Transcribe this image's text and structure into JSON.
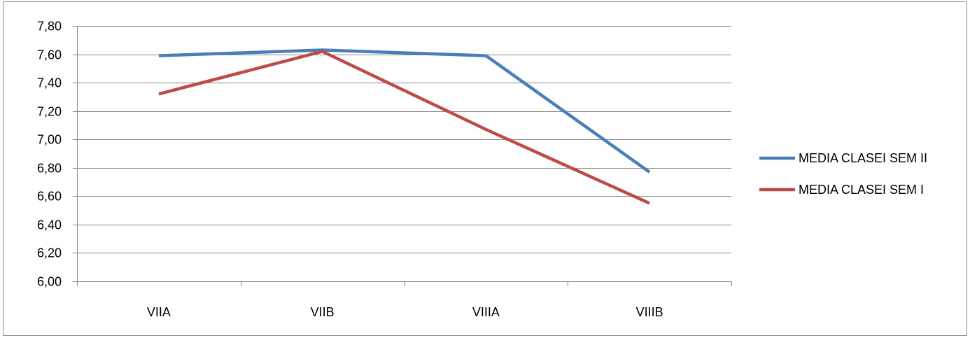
{
  "chart_data": {
    "type": "line",
    "categories": [
      "VIIA",
      "VIIB",
      "VIIIA",
      "VIIIB"
    ],
    "series": [
      {
        "name": "MEDIA CLASEI SEM II",
        "values": [
          7.59,
          7.63,
          7.59,
          6.77
        ],
        "color": "#4a7ebb"
      },
      {
        "name": "MEDIA CLASEI SEM I",
        "values": [
          7.32,
          7.62,
          7.07,
          6.55
        ],
        "color": "#be4b48"
      }
    ],
    "ylim": [
      6.0,
      7.8
    ],
    "y_ticks": [
      "6,00",
      "6,20",
      "6,40",
      "6,60",
      "6,80",
      "7,00",
      "7,20",
      "7,40",
      "7,60",
      "7,80"
    ],
    "grid": true,
    "legend_position": "right",
    "title": "",
    "xlabel": "",
    "ylabel": ""
  }
}
